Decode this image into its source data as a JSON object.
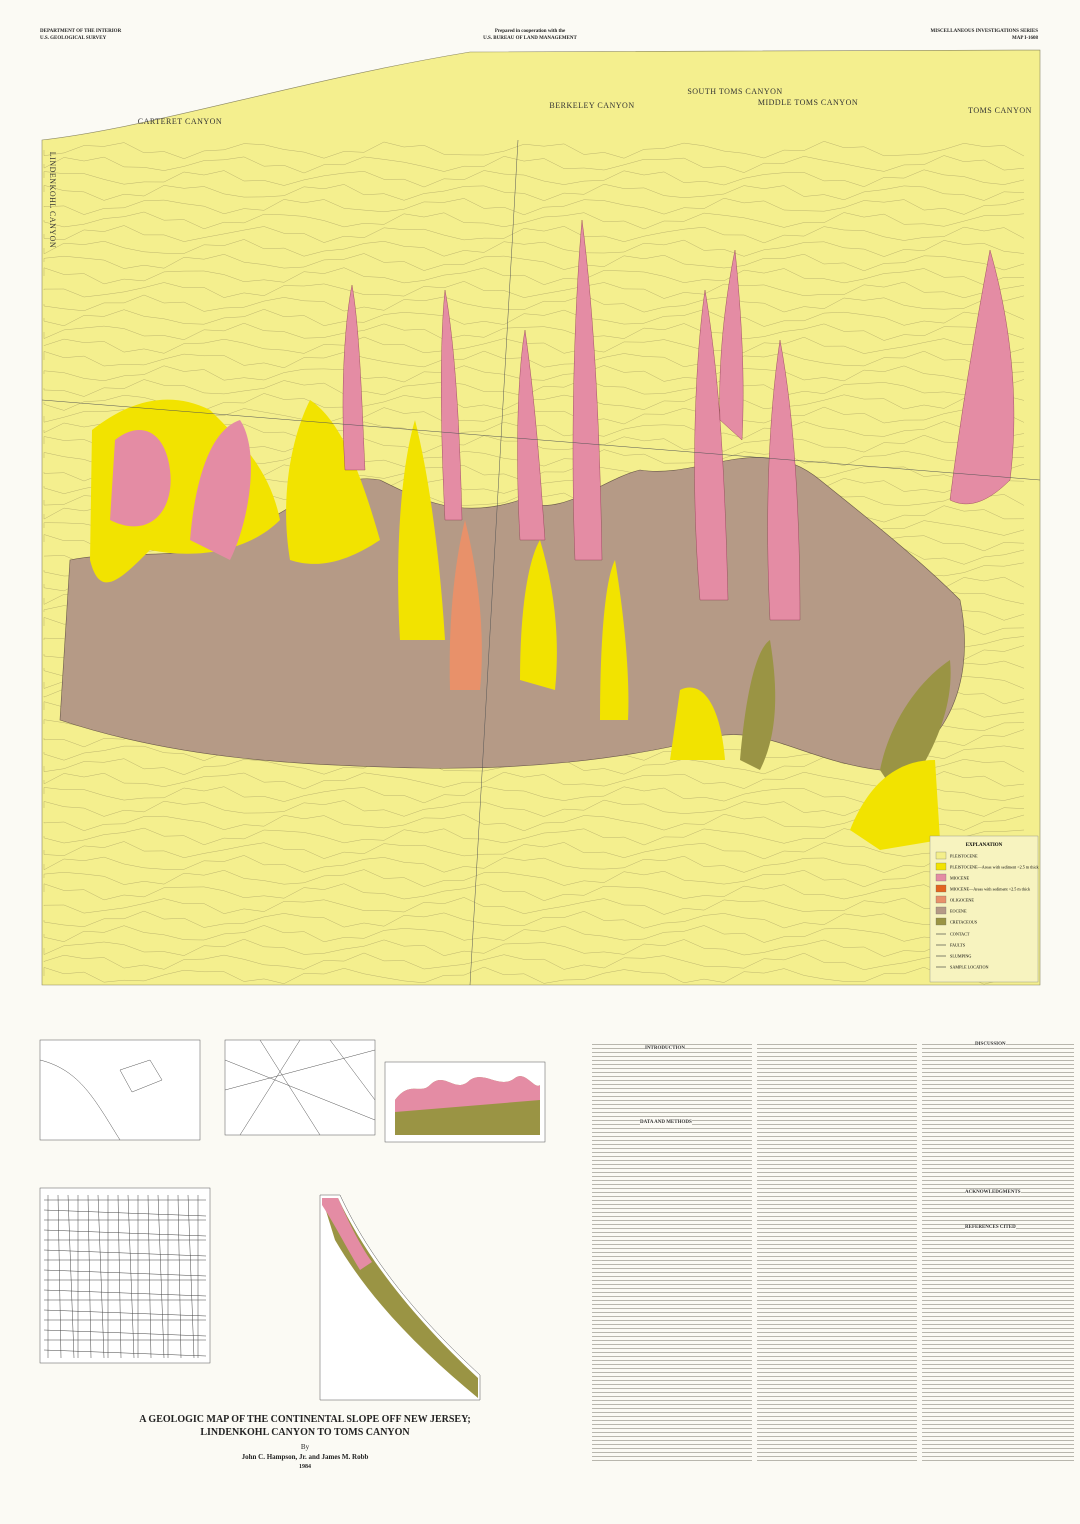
{
  "header": {
    "left": [
      "DEPARTMENT OF THE INTERIOR",
      "U.S. GEOLOGICAL SURVEY"
    ],
    "center": [
      "Prepared in cooperation with the",
      "U.S. BUREAU OF LAND MANAGEMENT"
    ],
    "right": [
      "MISCELLANEOUS INVESTIGATIONS SERIES",
      "MAP I-1608"
    ]
  },
  "canyons": [
    "LINDENKOHL CANYON",
    "CARTERET CANYON",
    "BERKELEY CANYON",
    "SOUTH TOMS CANYON",
    "MIDDLE TOMS CANYON",
    "TOMS CANYON"
  ],
  "legend": {
    "title": "EXPLANATION",
    "items": [
      {
        "label": "PLEISTOCENE",
        "color": "#f4ef8a"
      },
      {
        "label": "PLEISTOCENE—Areas with sediment <2.5 m thick",
        "color": "#f2e300"
      },
      {
        "label": "MIOCENE",
        "color": "#e48ca4"
      },
      {
        "label": "MIOCENE—Areas with sediment <2.5 m thick",
        "color": "#e3651f"
      },
      {
        "label": "OLIGOCENE",
        "color": "#e8916a"
      },
      {
        "label": "EOCENE",
        "color": "#b59a86"
      },
      {
        "label": "CRETACEOUS",
        "color": "#9a9444"
      }
    ],
    "symbols": [
      "CONTACT",
      "FAULTS",
      "SLUMPING",
      "SAMPLE LOCATION"
    ]
  },
  "sections": [
    "INTRODUCTION",
    "DATA AND METHODS",
    "DISCUSSION",
    "ACKNOWLEDGMENTS",
    "REFERENCES CITED"
  ],
  "title": {
    "lines": [
      "A GEOLOGIC MAP OF THE CONTINENTAL SLOPE OFF NEW JERSEY;",
      "LINDENKOHL CANYON TO TOMS CANYON"
    ],
    "by": "By",
    "authors": "John C. Hampson, Jr. and James M. Robb",
    "year": "1984"
  }
}
